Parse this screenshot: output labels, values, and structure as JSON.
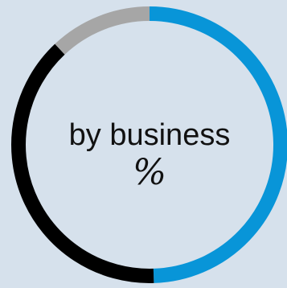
{
  "chart_data": {
    "type": "pie",
    "style": "donut",
    "center_label": {
      "line1": "by business",
      "line2": "%"
    },
    "start_angle_deg": 0,
    "direction": "clockwise",
    "slices": [
      {
        "value": 49.5,
        "color": "#0895d8"
      },
      {
        "value": 38.5,
        "color": "#000000"
      },
      {
        "value": 12.0,
        "color": "#a6a6a6"
      }
    ],
    "background_color": "#d6e1ec"
  }
}
